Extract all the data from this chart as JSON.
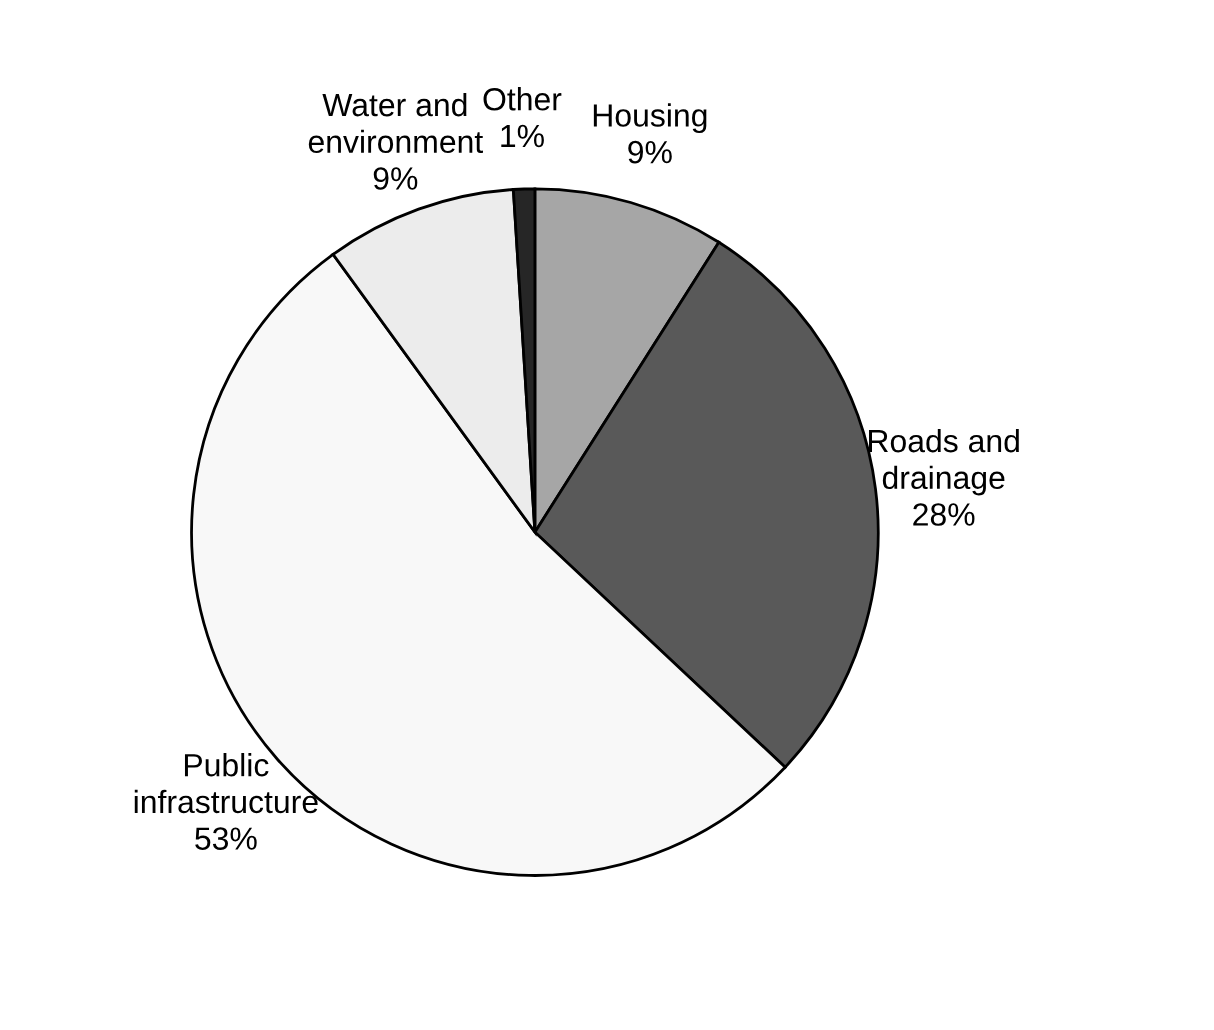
{
  "chart_data": {
    "type": "pie",
    "categories": [
      "Housing",
      "Roads and\ndrainage",
      "Public\ninfrastructure",
      "Water and\nenvironment",
      "Other"
    ],
    "values": [
      9,
      28,
      53,
      9,
      1
    ],
    "colors": [
      "#a6a6a6",
      "#595959",
      "#f8f8f8",
      "#ececec",
      "#262626"
    ],
    "value_labels": [
      "9%",
      "28%",
      "53%",
      "9%",
      "1%"
    ]
  }
}
